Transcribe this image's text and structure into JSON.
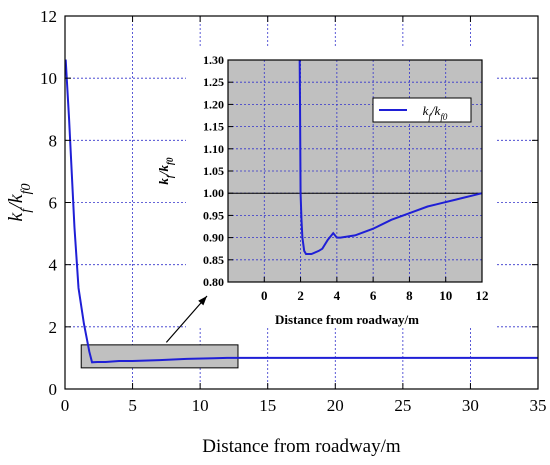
{
  "chart_data": [
    {
      "type": "line",
      "xlabel": "Distance from roadway/m",
      "ylabel": "k_f/k_f0",
      "xlim": [
        0,
        35
      ],
      "ylim": [
        0,
        12
      ],
      "x_ticks": [
        "0",
        "5",
        "10",
        "15",
        "20",
        "25",
        "30",
        "35"
      ],
      "y_ticks": [
        "0",
        "2",
        "4",
        "6",
        "8",
        "10",
        "12"
      ],
      "grid": true,
      "series": [
        {
          "x": [
            0.05,
            0.3,
            0.7,
            1.0,
            1.4,
            1.8,
            2.0,
            2.4,
            3.0,
            4.0,
            5.0,
            7.0,
            9.0,
            11.0,
            12.0,
            15.0,
            20.0,
            25.0,
            30.0,
            35.0
          ],
          "y": [
            10.6,
            8.7,
            5.2,
            3.25,
            2.1,
            1.2,
            0.86,
            0.87,
            0.87,
            0.9,
            0.9,
            0.93,
            0.97,
            0.99,
            1.0,
            1.0,
            1.0,
            1.0,
            1.0,
            1.0
          ]
        }
      ],
      "annotation": {
        "type": "highlight-box",
        "x_range": [
          1.2,
          12.8
        ],
        "y_range": [
          0.68,
          1.42
        ]
      }
    },
    {
      "type": "line",
      "inset": true,
      "xlabel": "Distance from roadway/m",
      "ylabel": "k_f/k_f0",
      "xlim": [
        -2,
        12
      ],
      "ylim": [
        0.8,
        1.3
      ],
      "x_ticks": [
        "0",
        "2",
        "4",
        "6",
        "8",
        "10",
        "12"
      ],
      "y_ticks": [
        "0.80",
        "0.85",
        "0.90",
        "0.95",
        "1.00",
        "1.05",
        "1.10",
        "1.15",
        "1.20",
        "1.25",
        "1.30"
      ],
      "grid": true,
      "reference_line": 1.0,
      "legend": {
        "position": "top-right",
        "label": "k_f/k_f0"
      },
      "series": [
        {
          "name": "k_f/k_f0",
          "x": [
            1.95,
            1.97,
            2.0,
            2.05,
            2.1,
            2.2,
            2.3,
            2.6,
            3.0,
            3.2,
            3.5,
            3.8,
            4.0,
            4.2,
            5.0,
            6.0,
            7.0,
            8.0,
            9.0,
            9.5,
            10.0,
            10.5,
            11.0,
            11.5,
            12.0
          ],
          "y": [
            1.3,
            1.2,
            1.0,
            0.94,
            0.9,
            0.87,
            0.863,
            0.863,
            0.87,
            0.875,
            0.895,
            0.91,
            0.9,
            0.9,
            0.905,
            0.92,
            0.94,
            0.955,
            0.97,
            0.975,
            0.98,
            0.985,
            0.99,
            0.995,
            1.0
          ]
        }
      ]
    }
  ]
}
